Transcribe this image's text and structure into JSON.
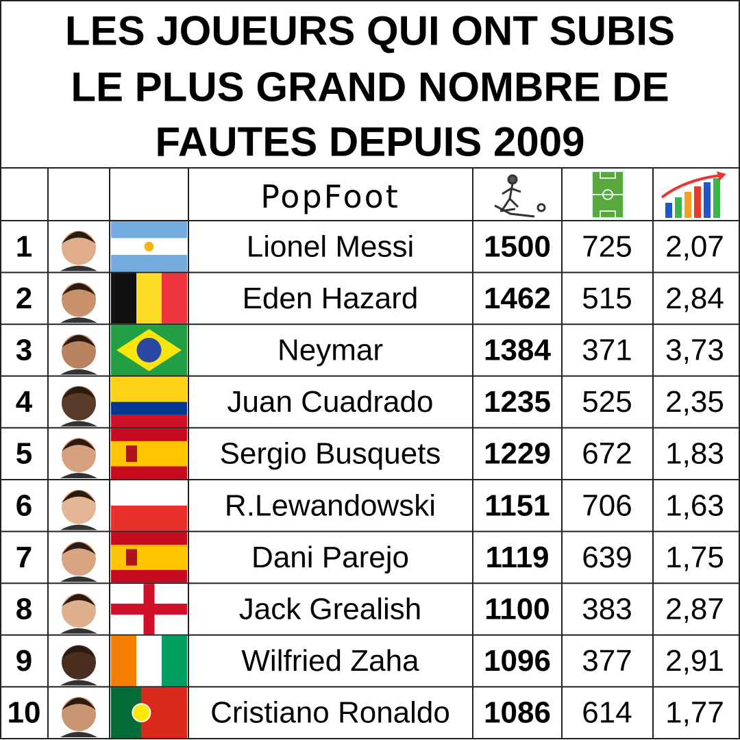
{
  "title_lines": [
    "LES JOUEURS QUI ONT SUBIS",
    "LE PLUS GRAND NOMBRE DE",
    "FAUTES DEPUIS 2009"
  ],
  "header": {
    "logo": "PopFoot"
  },
  "rows": [
    {
      "rank": 1,
      "name": "Lionel Messi",
      "fouls": 1500,
      "matches": 725,
      "ratio": "2,07"
    },
    {
      "rank": 2,
      "name": "Eden Hazard",
      "fouls": 1462,
      "matches": 515,
      "ratio": "2,84"
    },
    {
      "rank": 3,
      "name": "Neymar",
      "fouls": 1384,
      "matches": 371,
      "ratio": "3,73"
    },
    {
      "rank": 4,
      "name": "Juan Cuadrado",
      "fouls": 1235,
      "matches": 525,
      "ratio": "2,35"
    },
    {
      "rank": 5,
      "name": "Sergio Busquets",
      "fouls": 1229,
      "matches": 672,
      "ratio": "1,83"
    },
    {
      "rank": 6,
      "name": "R.Lewandowski",
      "fouls": 1151,
      "matches": 706,
      "ratio": "1,63"
    },
    {
      "rank": 7,
      "name": "Dani Parejo",
      "fouls": 1119,
      "matches": 639,
      "ratio": "1,75"
    },
    {
      "rank": 8,
      "name": "Jack Grealish",
      "fouls": 1100,
      "matches": 383,
      "ratio": "2,87"
    },
    {
      "rank": 9,
      "name": "Wilfried Zaha",
      "fouls": 1096,
      "matches": 377,
      "ratio": "2,91"
    },
    {
      "rank": 10,
      "name": "Cristiano Ronaldo",
      "fouls": 1086,
      "matches": 614,
      "ratio": "1,77"
    }
  ]
}
